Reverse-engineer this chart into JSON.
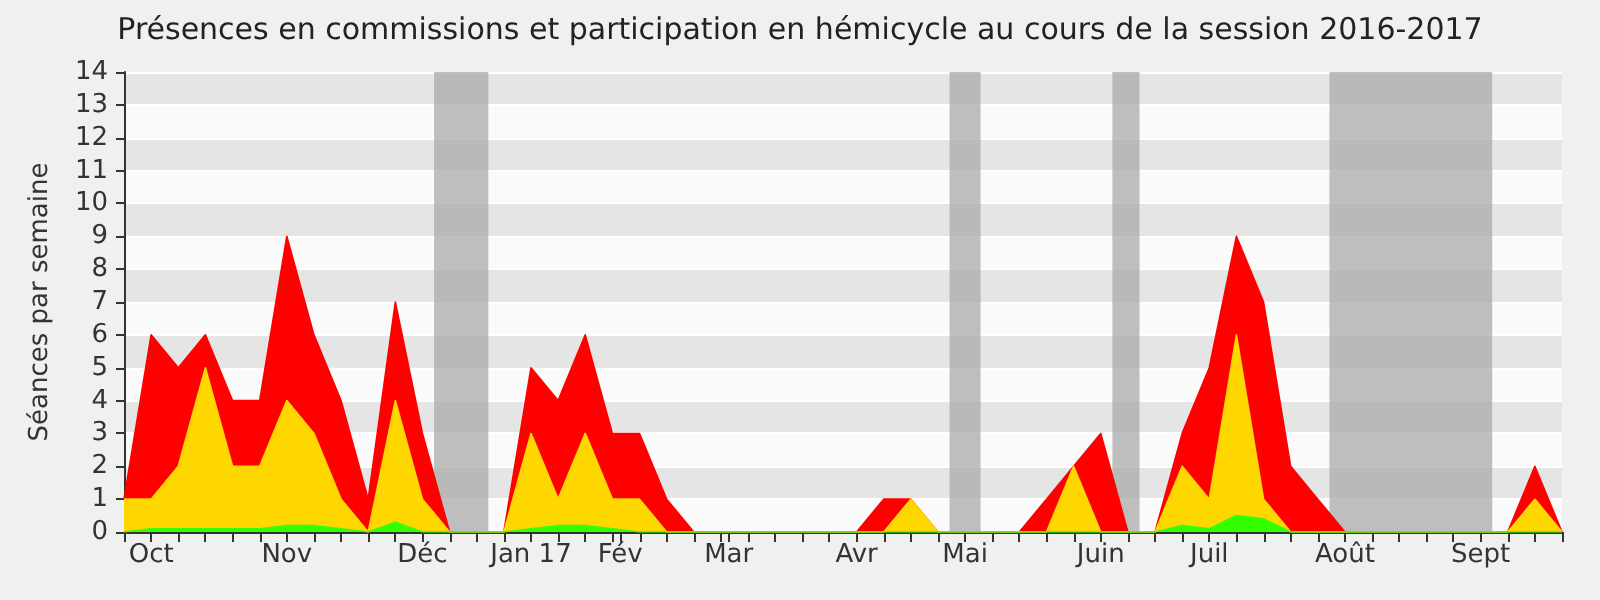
{
  "chart_data": {
    "type": "area",
    "stacked": true,
    "title": "Présences en commissions et participation en hémicycle au cours de la session 2016-2017",
    "ylabel": "Séances par semaine",
    "x": [
      "2016-09-26",
      "2016-10-03",
      "2016-10-10",
      "2016-10-17",
      "2016-10-24",
      "2016-10-31",
      "2016-11-07",
      "2016-11-14",
      "2016-11-21",
      "2016-11-28",
      "2016-12-05",
      "2016-12-12",
      "2016-12-19",
      "2016-12-26",
      "2017-01-02",
      "2017-01-09",
      "2017-01-16",
      "2017-01-23",
      "2017-01-30",
      "2017-02-06",
      "2017-02-13",
      "2017-02-20",
      "2017-02-27",
      "2017-03-06",
      "2017-03-13",
      "2017-03-20",
      "2017-03-27",
      "2017-04-03",
      "2017-04-10",
      "2017-04-17",
      "2017-04-24",
      "2017-05-01",
      "2017-05-08",
      "2017-05-15",
      "2017-05-22",
      "2017-05-29",
      "2017-06-05",
      "2017-06-12",
      "2017-06-19",
      "2017-06-26",
      "2017-07-03",
      "2017-07-10",
      "2017-07-17",
      "2017-07-24",
      "2017-07-31",
      "2017-08-07",
      "2017-08-14",
      "2017-08-21",
      "2017-08-28",
      "2017-09-04",
      "2017-09-11",
      "2017-09-18",
      "2017-09-25",
      "2017-10-02"
    ],
    "series": [
      {
        "color": "#33ff00",
        "values": [
          0,
          0.1,
          0.1,
          0.1,
          0.1,
          0.1,
          0.2,
          0.2,
          0.1,
          0,
          0.3,
          0,
          0,
          0,
          0,
          0.1,
          0.2,
          0.2,
          0.1,
          0,
          0,
          0,
          0,
          0,
          0,
          0,
          0,
          0,
          0,
          0,
          0,
          0,
          0,
          0,
          0,
          0,
          0,
          0,
          0,
          0.2,
          0.1,
          0.5,
          0.4,
          0,
          0,
          0,
          0,
          0,
          0,
          0,
          0,
          0,
          0,
          0
        ]
      },
      {
        "color": "#ffd700",
        "values": [
          1,
          0.9,
          1.9,
          4.9,
          1.9,
          1.9,
          3.8,
          2.8,
          0.9,
          0,
          3.7,
          1,
          0,
          0,
          0,
          2.9,
          0.8,
          2.8,
          0.9,
          1,
          0,
          0,
          0,
          0,
          0,
          0,
          0,
          0,
          0,
          1,
          0,
          0,
          0,
          0,
          0,
          2,
          0,
          0,
          0,
          1.8,
          0.9,
          5.5,
          0.6,
          0,
          0,
          0,
          0,
          0,
          0,
          0,
          0,
          0,
          1,
          0
        ]
      },
      {
        "color": "#ff0000",
        "values": [
          0,
          5,
          3,
          1,
          2,
          2,
          5,
          3,
          3,
          1,
          3,
          2,
          0,
          0,
          0,
          2,
          3,
          3,
          2,
          2,
          1,
          0,
          0,
          0,
          0,
          0,
          0,
          0,
          1,
          0,
          0,
          0,
          0,
          0,
          1,
          0,
          3,
          0,
          0,
          1,
          4,
          3,
          6,
          2,
          1,
          0,
          0,
          0,
          0,
          0,
          0,
          0,
          1,
          0
        ]
      }
    ],
    "xlim": [
      "2016-09-26",
      "2017-10-02"
    ],
    "xticks": [
      {
        "value": "2016-09-26",
        "label": null
      },
      {
        "value": "2016-10-03",
        "label": "Oct"
      },
      {
        "value": "2016-10-10",
        "label": null
      },
      {
        "value": "2016-10-17",
        "label": null
      },
      {
        "value": "2016-10-24",
        "label": null
      },
      {
        "value": "2016-10-31",
        "label": null
      },
      {
        "value": "2016-11-07",
        "label": "Nov"
      },
      {
        "value": "2016-11-14",
        "label": null
      },
      {
        "value": "2016-11-21",
        "label": null
      },
      {
        "value": "2016-11-28",
        "label": null
      },
      {
        "value": "2016-12-05",
        "label": null
      },
      {
        "value": "2016-12-12",
        "label": "Déc"
      },
      {
        "value": "2016-12-19",
        "label": null
      },
      {
        "value": "2016-12-26",
        "label": null
      },
      {
        "value": "2017-01-02",
        "label": null
      },
      {
        "value": "2017-01-09",
        "label": "Jan 17"
      },
      {
        "value": "2017-01-16",
        "label": null
      },
      {
        "value": "2017-01-23",
        "label": null
      },
      {
        "value": "2017-01-30",
        "label": null
      },
      {
        "value": "2017-02-01",
        "label": "Fév"
      },
      {
        "value": "2017-02-06",
        "label": null
      },
      {
        "value": "2017-02-13",
        "label": null
      },
      {
        "value": "2017-02-20",
        "label": null
      },
      {
        "value": "2017-03-01",
        "label": "Mar"
      },
      {
        "value": "2017-02-27",
        "label": null
      },
      {
        "value": "2017-03-06",
        "label": null
      },
      {
        "value": "2017-03-13",
        "label": null
      },
      {
        "value": "2017-03-20",
        "label": null
      },
      {
        "value": "2017-03-27",
        "label": null
      },
      {
        "value": "2017-04-03",
        "label": "Avr"
      },
      {
        "value": "2017-04-10",
        "label": null
      },
      {
        "value": "2017-04-17",
        "label": null
      },
      {
        "value": "2017-04-24",
        "label": null
      },
      {
        "value": "2017-05-01",
        "label": "Mai"
      },
      {
        "value": "2017-05-08",
        "label": null
      },
      {
        "value": "2017-05-15",
        "label": null
      },
      {
        "value": "2017-05-22",
        "label": null
      },
      {
        "value": "2017-05-29",
        "label": null
      },
      {
        "value": "2017-06-05",
        "label": "Juin"
      },
      {
        "value": "2017-06-12",
        "label": null
      },
      {
        "value": "2017-06-19",
        "label": null
      },
      {
        "value": "2017-06-26",
        "label": null
      },
      {
        "value": "2017-07-03",
        "label": "Juil"
      },
      {
        "value": "2017-07-10",
        "label": null
      },
      {
        "value": "2017-07-17",
        "label": null
      },
      {
        "value": "2017-07-24",
        "label": null
      },
      {
        "value": "2017-07-31",
        "label": null
      },
      {
        "value": "2017-08-07",
        "label": "Août"
      },
      {
        "value": "2017-08-14",
        "label": null
      },
      {
        "value": "2017-08-21",
        "label": null
      },
      {
        "value": "2017-08-28",
        "label": null
      },
      {
        "value": "2017-09-04",
        "label": null
      },
      {
        "value": "2017-09-11",
        "label": "Sept"
      },
      {
        "value": "2017-09-18",
        "label": null
      },
      {
        "value": "2017-09-25",
        "label": null
      },
      {
        "value": "2017-10-02",
        "label": null
      }
    ],
    "ylim": [
      0,
      14
    ],
    "yticks": [
      0,
      1,
      2,
      3,
      4,
      5,
      6,
      7,
      8,
      9,
      10,
      11,
      12,
      13,
      14
    ],
    "bands": [
      {
        "axis": "x",
        "from": "2016-12-15",
        "to": "2016-12-29",
        "color": "#aaaaaa"
      },
      {
        "axis": "x",
        "from": "2017-04-27",
        "to": "2017-05-05",
        "color": "#aaaaaa"
      },
      {
        "axis": "x",
        "from": "2017-06-08",
        "to": "2017-06-15",
        "color": "#aaaaaa"
      },
      {
        "axis": "x",
        "from": "2017-08-03",
        "to": "2017-09-14",
        "color": "#aaaaaa"
      }
    ],
    "grid": true,
    "marker": "none"
  }
}
